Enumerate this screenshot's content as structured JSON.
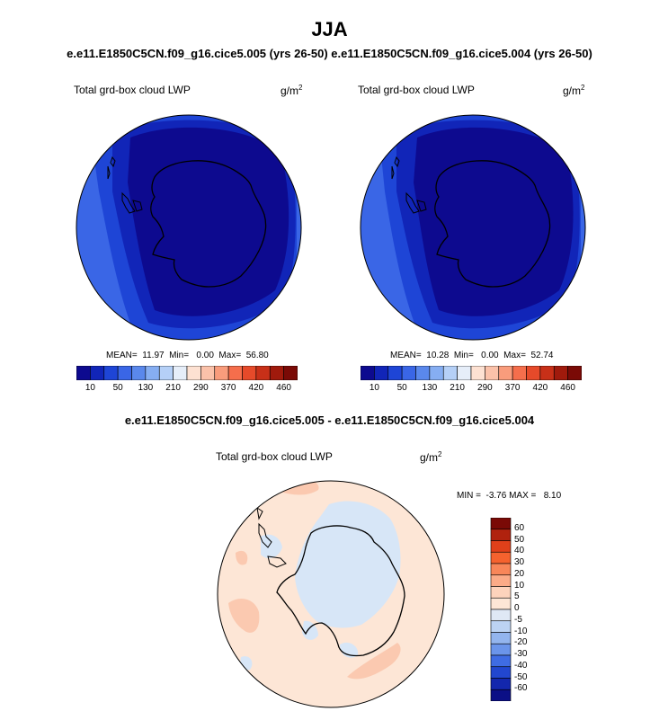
{
  "figure": {
    "season": "JJA",
    "subtitle": "e.e11.E1850C5CN.f09_g16.cice5.005 (yrs 26-50)  e.e11.E1850C5CN.f09_g16.cice5.004 (yrs 26-50)",
    "diff_title": "e.e11.E1850C5CN.f09_g16.cice5.005 - e.e11.E1850C5CN.f09_g16.cice5.004"
  },
  "panels": [
    {
      "label": "Total grd-box cloud LWP",
      "unit_base": "g/m",
      "unit_exp": "2",
      "stats": "MEAN=  11.97  Min=   0.00  Max=  56.80"
    },
    {
      "label": "Total grd-box cloud LWP",
      "unit_base": "g/m",
      "unit_exp": "2",
      "stats": "MEAN=  10.28  Min=   0.00  Max=  52.74"
    }
  ],
  "diff_panel": {
    "label": "Total grd-box cloud LWP",
    "unit_base": "g/m",
    "unit_exp": "2",
    "stats": "MIN =  -3.76 MAX =   8.10"
  },
  "colorbar_top": {
    "colors": [
      "#0d0a8f",
      "#1125b8",
      "#1e45d6",
      "#3a66e6",
      "#5a88ec",
      "#86aef2",
      "#b5d0f7",
      "#e6eef9",
      "#fde1d2",
      "#fbc2aa",
      "#f99c7c",
      "#f56e4c",
      "#e64a2a",
      "#c83018",
      "#a01a0c",
      "#7a0a06"
    ],
    "ticks": [
      "10",
      "50",
      "130",
      "210",
      "290",
      "370",
      "420",
      "460"
    ]
  },
  "colorbar_diff": {
    "colors_top_to_bottom": [
      "#7a0a06",
      "#b0220e",
      "#e0401a",
      "#f5622e",
      "#f88659",
      "#fbab88",
      "#fdd3bc",
      "#fde6d6",
      "#dfe8f5",
      "#bcd3f3",
      "#93b5ee",
      "#6b95ea",
      "#3f6ce3",
      "#2247cf",
      "#1327ad",
      "#0b0f86"
    ],
    "ticks": [
      "60",
      "50",
      "40",
      "30",
      "20",
      "10",
      "5",
      "0",
      "-5",
      "-10",
      "-20",
      "-30",
      "-40",
      "-50",
      "-60"
    ]
  },
  "map_colors": {
    "outer_ring": "#3a66e6",
    "middle_ring": "#1e45d6",
    "inner_ring": "#1125b8",
    "core": "#0d0a8f",
    "diff_background": "#fde6d6",
    "diff_positive": "#fbc9b0",
    "diff_negative": "#d7e6f7",
    "coastline": "#000000"
  }
}
